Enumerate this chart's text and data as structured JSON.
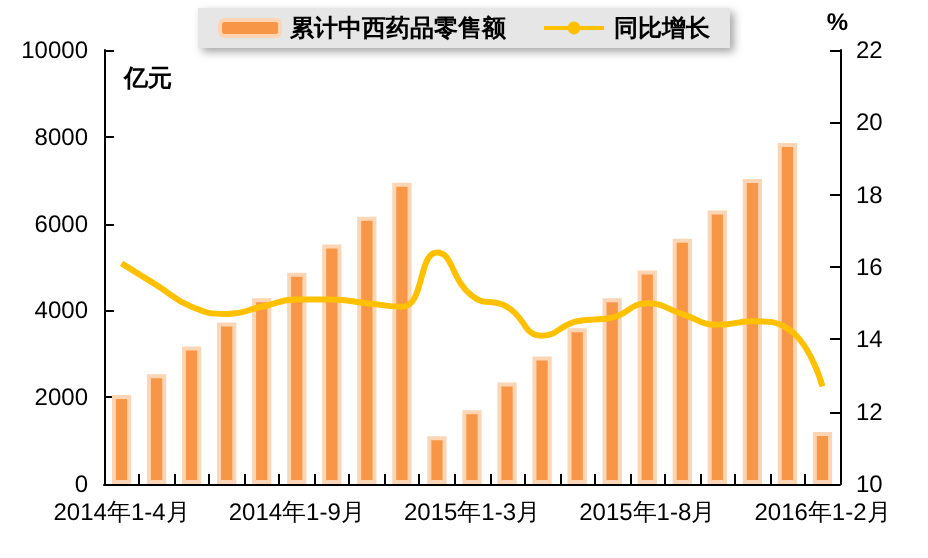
{
  "chart_data": {
    "type": "bar",
    "categories": [
      "2014年1-4月",
      null,
      null,
      null,
      null,
      "2014年1-9月",
      null,
      null,
      null,
      null,
      "2015年1-3月",
      null,
      null,
      null,
      null,
      "2015年1-8月",
      null,
      null,
      null,
      null,
      "2016年1-2月"
    ],
    "series": [
      {
        "name": "累计中西药品零售额",
        "color": "#f79646",
        "values": [
          2050,
          2530,
          3170,
          3720,
          4280,
          4870,
          5520,
          6160,
          6940,
          1100,
          1700,
          2340,
          2940,
          3590,
          4280,
          4920,
          5650,
          6300,
          7030,
          7860,
          1200
        ]
      },
      {
        "name": "同比增长",
        "type": "line",
        "axis": "y2",
        "color": "#ffc000",
        "marker": "none",
        "values": [
          16.1,
          15.5,
          14.9,
          14.7,
          14.9,
          15.1,
          15.1,
          15.0,
          14.9,
          16.4,
          15.2,
          14.9,
          14.1,
          14.5,
          14.6,
          15.0,
          14.7,
          14.4,
          14.5,
          14.3,
          12.7
        ]
      }
    ],
    "ylabel": "亿元",
    "y2label": "%",
    "ylim": [
      0,
      10000
    ],
    "yticks": [
      0,
      2000,
      4000,
      6000,
      8000,
      10000
    ],
    "y2lim": [
      10,
      22
    ],
    "y2ticks": [
      10,
      12,
      14,
      16,
      18,
      20,
      22
    ],
    "grid": false,
    "legend": "top"
  }
}
